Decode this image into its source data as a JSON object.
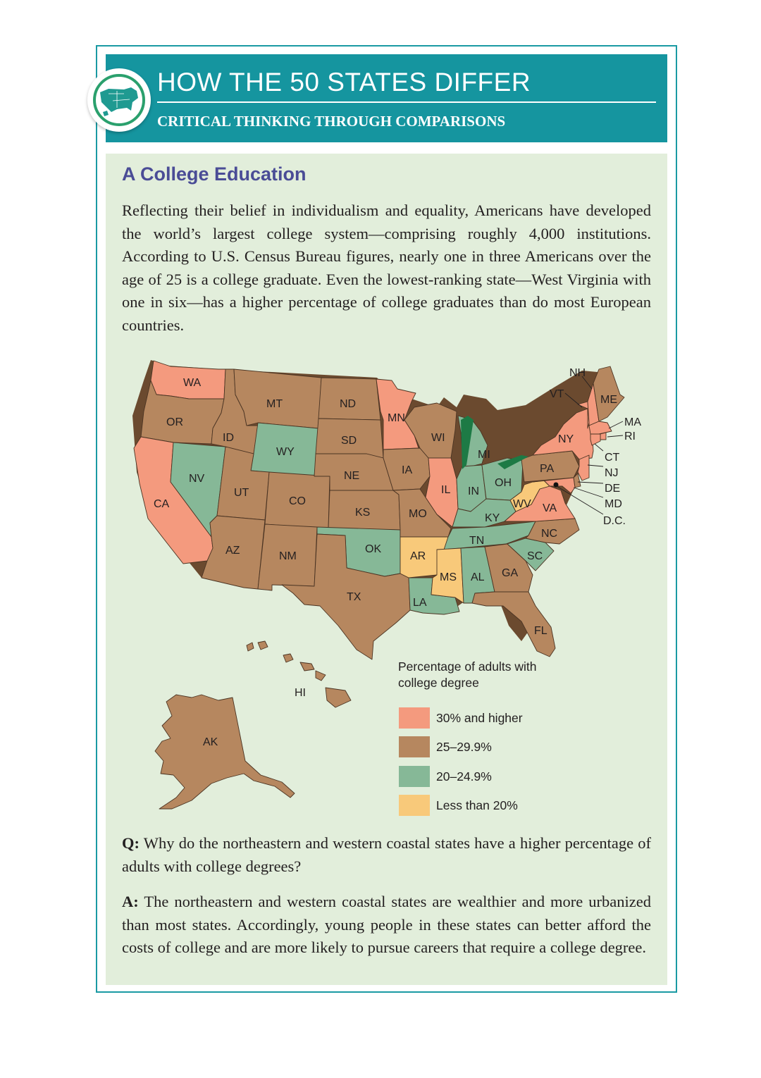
{
  "header": {
    "title": "HOW THE 50 STATES DIFFER",
    "subtitle": "CRITICAL THINKING THROUGH COMPARISONS",
    "badge_icon": "us-map-icon"
  },
  "section": {
    "title": "A College Education",
    "intro": "Reflecting their belief in individualism and equality, Americans have developed the world’s largest college system—comprising roughly 4,000 institutions. According to U.S. Census Bureau figures, nearly one in three Americans over the age of 25 is a college graduate. Even the lowest-ranking state—West Virginia with one in six—has a higher percentage of college graduates than do most European countries."
  },
  "map": {
    "legend_title": "Percentage of adults with college degree",
    "categories": [
      {
        "key": "high",
        "label": "30% and higher",
        "color": "#f49a7e"
      },
      {
        "key": "midhigh",
        "label": "25–29.9%",
        "color": "#b6875f"
      },
      {
        "key": "mid",
        "label": "20–24.9%",
        "color": "#86b897"
      },
      {
        "key": "low",
        "label": "Less than 20%",
        "color": "#f8c97a"
      }
    ],
    "states": [
      {
        "abbr": "WA",
        "category": "high"
      },
      {
        "abbr": "OR",
        "category": "midhigh"
      },
      {
        "abbr": "CA",
        "category": "high"
      },
      {
        "abbr": "NV",
        "category": "mid"
      },
      {
        "abbr": "ID",
        "category": "midhigh"
      },
      {
        "abbr": "MT",
        "category": "midhigh"
      },
      {
        "abbr": "WY",
        "category": "mid"
      },
      {
        "abbr": "UT",
        "category": "midhigh"
      },
      {
        "abbr": "CO",
        "category": "midhigh"
      },
      {
        "abbr": "AZ",
        "category": "midhigh"
      },
      {
        "abbr": "NM",
        "category": "midhigh"
      },
      {
        "abbr": "ND",
        "category": "midhigh"
      },
      {
        "abbr": "SD",
        "category": "midhigh"
      },
      {
        "abbr": "NE",
        "category": "midhigh"
      },
      {
        "abbr": "KS",
        "category": "midhigh"
      },
      {
        "abbr": "OK",
        "category": "mid"
      },
      {
        "abbr": "TX",
        "category": "midhigh"
      },
      {
        "abbr": "MN",
        "category": "high"
      },
      {
        "abbr": "IA",
        "category": "midhigh"
      },
      {
        "abbr": "MO",
        "category": "midhigh"
      },
      {
        "abbr": "AR",
        "category": "low"
      },
      {
        "abbr": "LA",
        "category": "mid"
      },
      {
        "abbr": "WI",
        "category": "midhigh"
      },
      {
        "abbr": "IL",
        "category": "high"
      },
      {
        "abbr": "MI",
        "category": "mid"
      },
      {
        "abbr": "IN",
        "category": "mid"
      },
      {
        "abbr": "OH",
        "category": "mid"
      },
      {
        "abbr": "KY",
        "category": "mid"
      },
      {
        "abbr": "TN",
        "category": "mid"
      },
      {
        "abbr": "MS",
        "category": "low"
      },
      {
        "abbr": "AL",
        "category": "mid"
      },
      {
        "abbr": "GA",
        "category": "midhigh"
      },
      {
        "abbr": "FL",
        "category": "midhigh"
      },
      {
        "abbr": "SC",
        "category": "mid"
      },
      {
        "abbr": "NC",
        "category": "midhigh"
      },
      {
        "abbr": "VA",
        "category": "high"
      },
      {
        "abbr": "WV",
        "category": "low"
      },
      {
        "abbr": "PA",
        "category": "midhigh"
      },
      {
        "abbr": "NY",
        "category": "high"
      },
      {
        "abbr": "VT",
        "category": "high"
      },
      {
        "abbr": "NH",
        "category": "high"
      },
      {
        "abbr": "ME",
        "category": "midhigh"
      },
      {
        "abbr": "MA",
        "category": "high"
      },
      {
        "abbr": "RI",
        "category": "high"
      },
      {
        "abbr": "CT",
        "category": "high"
      },
      {
        "abbr": "NJ",
        "category": "high"
      },
      {
        "abbr": "DE",
        "category": "midhigh"
      },
      {
        "abbr": "MD",
        "category": "high"
      },
      {
        "abbr": "D.C.",
        "category": "high"
      },
      {
        "abbr": "HI",
        "category": "midhigh"
      },
      {
        "abbr": "AK",
        "category": "midhigh"
      }
    ]
  },
  "qa": {
    "q_label": "Q:",
    "question": "Why do the northeastern and western coastal states have a higher percentage of adults with college degrees?",
    "a_label": "A:",
    "answer": "The northeastern and western coastal states are wealthier and more urbanized than most states. Accordingly, young people in these states can better afford the costs of college and are more likely to pursue careers that require a college degree."
  }
}
